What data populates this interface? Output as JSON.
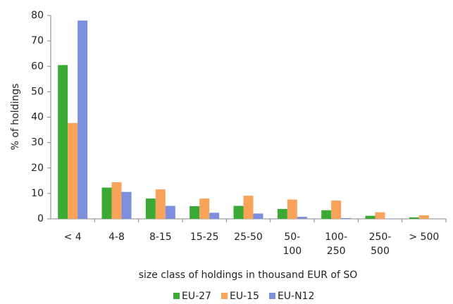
{
  "chart_data": {
    "type": "bar",
    "x_label": "size class of holdings in thousand EUR of SO",
    "y_label": "% of holdings",
    "categories": [
      "< 4",
      "4-8",
      "8-15",
      "15-25",
      "25-50",
      "50-100",
      "100-250",
      "250-500",
      "> 500"
    ],
    "series": [
      {
        "name": "EU-27",
        "color": "#3aaa35",
        "values": [
          60.5,
          12.3,
          8,
          5,
          5.1,
          3.9,
          3.4,
          1.2,
          0.6
        ]
      },
      {
        "name": "EU-15",
        "color": "#f9a35a",
        "values": [
          37.7,
          14.4,
          11.6,
          8,
          9.1,
          7.6,
          7.2,
          2.6,
          1.4
        ]
      },
      {
        "name": "EU-N12",
        "color": "#7b8fde",
        "values": [
          78,
          10.6,
          5.1,
          2.4,
          2.1,
          0.8,
          0.3,
          0.1,
          0
        ]
      }
    ],
    "ylim": [
      0,
      80
    ],
    "yticks": [
      0,
      10,
      20,
      30,
      40,
      50,
      60,
      70,
      80
    ],
    "grid": false
  }
}
